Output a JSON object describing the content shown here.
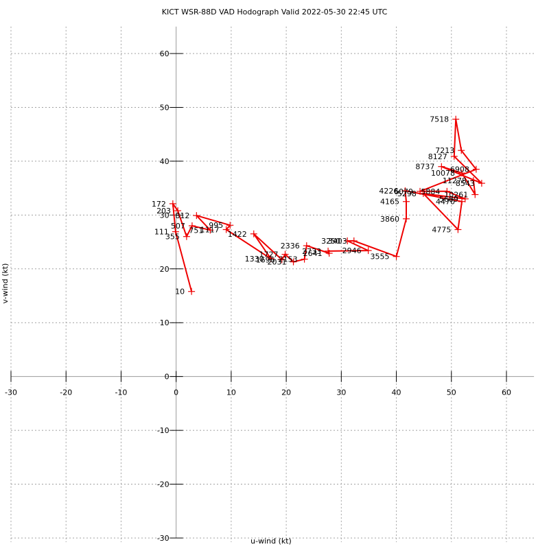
{
  "chart_data": {
    "type": "line",
    "title": "KICT WSR-88D VAD Hodograph Valid 2022-05-30 22:45 UTC",
    "xlabel": "u-wind (kt)",
    "ylabel": "v-wind (kt)",
    "xlim": [
      -30,
      65
    ],
    "ylim": [
      -30,
      65
    ],
    "xticks": [
      -30,
      -20,
      -10,
      0,
      10,
      20,
      30,
      40,
      50,
      60
    ],
    "yticks": [
      -30,
      -20,
      -10,
      0,
      10,
      20,
      30,
      40,
      50,
      60
    ],
    "grid": true,
    "line_color": "#ee0000",
    "marker": "+",
    "point_label_unit": "height (m)",
    "series": [
      {
        "name": "VAD hodograph",
        "points": [
          {
            "label": "10",
            "u": 2.8,
            "v": 15.8
          },
          {
            "label": "111",
            "u": -0.1,
            "v": 26.9
          },
          {
            "label": "172",
            "u": -0.6,
            "v": 32.1
          },
          {
            "label": "203",
            "u": 0.3,
            "v": 30.8
          },
          {
            "label": "355",
            "u": 1.9,
            "v": 26.0
          },
          {
            "label": "507",
            "u": 2.9,
            "v": 28.0
          },
          {
            "label": "751",
            "u": 6.2,
            "v": 27.2
          },
          {
            "label": "812",
            "u": 3.7,
            "v": 29.9
          },
          {
            "label": "995",
            "u": 9.8,
            "v": 28.1
          },
          {
            "label": "1117",
            "u": 9.1,
            "v": 27.3
          },
          {
            "label": "1330",
            "u": 17.2,
            "v": 21.9
          },
          {
            "label": "1422",
            "u": 14.1,
            "v": 26.5
          },
          {
            "label": "1696",
            "u": 19.2,
            "v": 21.7
          },
          {
            "label": "1727",
            "u": 19.8,
            "v": 22.7
          },
          {
            "label": "2031",
            "u": 21.3,
            "v": 21.3
          },
          {
            "label": "2153",
            "u": 23.3,
            "v": 21.8
          },
          {
            "label": "2336",
            "u": 23.7,
            "v": 24.3
          },
          {
            "label": "2641",
            "u": 27.8,
            "v": 22.9
          },
          {
            "label": "2733",
            "u": 27.6,
            "v": 23.3
          },
          {
            "label": "2946",
            "u": 34.9,
            "v": 23.4
          },
          {
            "label": "3250",
            "u": 31.1,
            "v": 25.2
          },
          {
            "label": "3403",
            "u": 32.3,
            "v": 25.2
          },
          {
            "label": "3555",
            "u": 40.0,
            "v": 22.3
          },
          {
            "label": "3860",
            "u": 41.8,
            "v": 29.3
          },
          {
            "label": "4165",
            "u": 41.8,
            "v": 32.5
          },
          {
            "label": "4226",
            "u": 41.6,
            "v": 34.5
          },
          {
            "label": "4470",
            "u": 51.9,
            "v": 32.5
          },
          {
            "label": "4775",
            "u": 51.2,
            "v": 27.3
          },
          {
            "label": "5298",
            "u": 44.9,
            "v": 34.0
          },
          {
            "label": "5689",
            "u": 52.5,
            "v": 33.0
          },
          {
            "label": "5884",
            "u": 49.2,
            "v": 34.4
          },
          {
            "label": "6079",
            "u": 44.3,
            "v": 34.4
          },
          {
            "label": "6908",
            "u": 54.5,
            "v": 38.5
          },
          {
            "label": "7213",
            "u": 51.8,
            "v": 42.0
          },
          {
            "label": "7518",
            "u": 50.8,
            "v": 47.8
          },
          {
            "label": "8127",
            "u": 50.5,
            "v": 40.9
          },
          {
            "label": "8543",
            "u": 55.5,
            "v": 35.9
          },
          {
            "label": "8737",
            "u": 48.2,
            "v": 39.0
          },
          {
            "label": "10078",
            "u": 51.9,
            "v": 37.8
          },
          {
            "label": "10261",
            "u": 54.3,
            "v": 33.8
          },
          {
            "label": "11278",
            "u": 54.0,
            "v": 36.4
          }
        ]
      }
    ]
  }
}
